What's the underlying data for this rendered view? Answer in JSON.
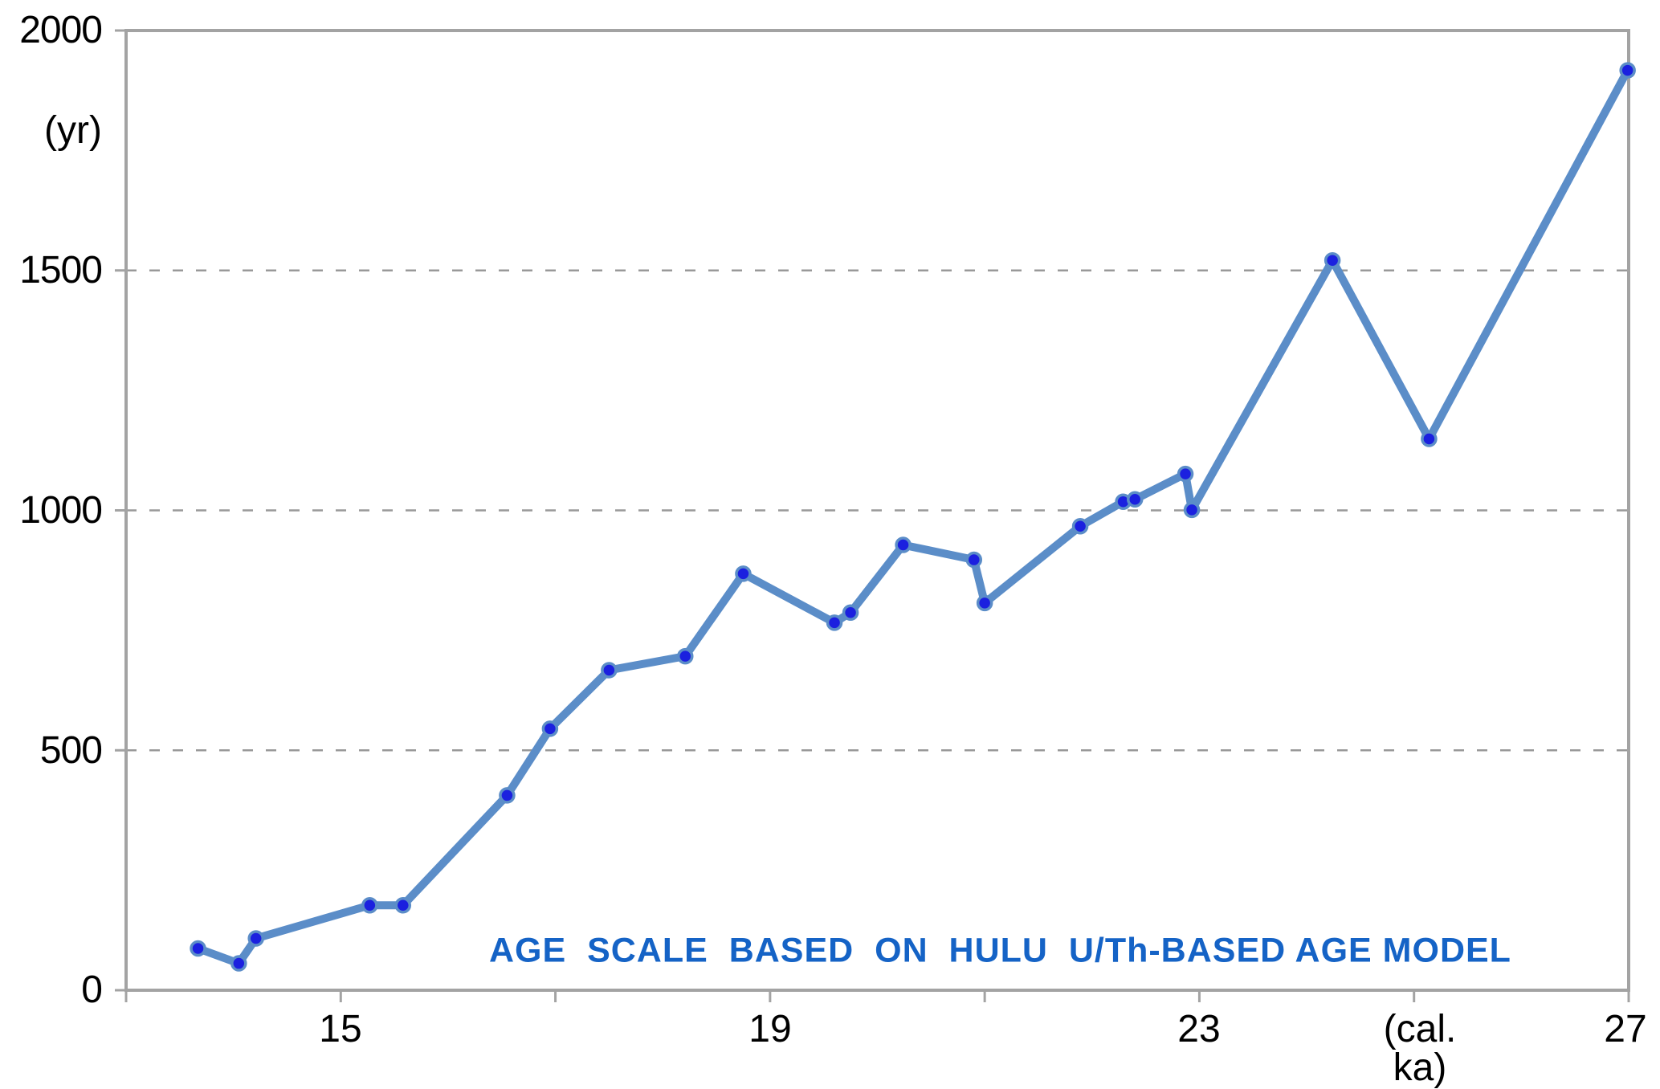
{
  "page": {
    "background": "#ffffff"
  },
  "chart_data": {
    "type": "line",
    "title": "",
    "ylabel": "(yr)",
    "xlabel": "(cal. ka)",
    "xlim": [
      13,
      27
    ],
    "ylim": [
      0,
      2000
    ],
    "y_ticks": [
      0,
      500,
      1000,
      1500,
      2000
    ],
    "y_tick_labels": [
      "0",
      "500",
      "1000",
      "1500",
      "2000"
    ],
    "y_gridlines": [
      500,
      1000,
      1500
    ],
    "grid": "horizontal dashed gridlines at 500, 1000, 1500",
    "x_ticks_all": [
      13,
      15,
      17,
      19,
      21,
      23,
      25,
      27
    ],
    "x_ticks_labeled": [
      15,
      19,
      23,
      27
    ],
    "x_tick_labels": [
      "15",
      "19",
      "23",
      "27"
    ],
    "x_unit_label_at": 25,
    "legend": "none",
    "annotation": {
      "text": "AGE  SCALE  BASED  ON  HULU  U/Th-BASED AGE MODEL",
      "color": "#1563c6"
    },
    "series": [
      {
        "name": "",
        "line_color": "#5b8dc8",
        "marker_fill": "#1b20df",
        "marker_edge": "#5b8dc8",
        "x": [
          13.67,
          14.05,
          14.21,
          15.27,
          15.58,
          16.55,
          16.95,
          17.5,
          18.21,
          18.75,
          19.6,
          19.75,
          20.24,
          20.9,
          21.0,
          21.89,
          22.29,
          22.4,
          22.87,
          22.93,
          24.24,
          25.14,
          26.99
        ],
        "y": [
          87,
          56,
          108,
          177,
          177,
          406,
          545,
          667,
          696,
          868,
          766,
          787,
          928,
          897,
          807,
          967,
          1018,
          1023,
          1076,
          1001,
          1521,
          1149,
          1917
        ]
      }
    ],
    "colors": {
      "frame": "#a3a3a3",
      "gridline": "#999999",
      "tick": "#a3a3a3",
      "label_text": "#000000"
    }
  }
}
